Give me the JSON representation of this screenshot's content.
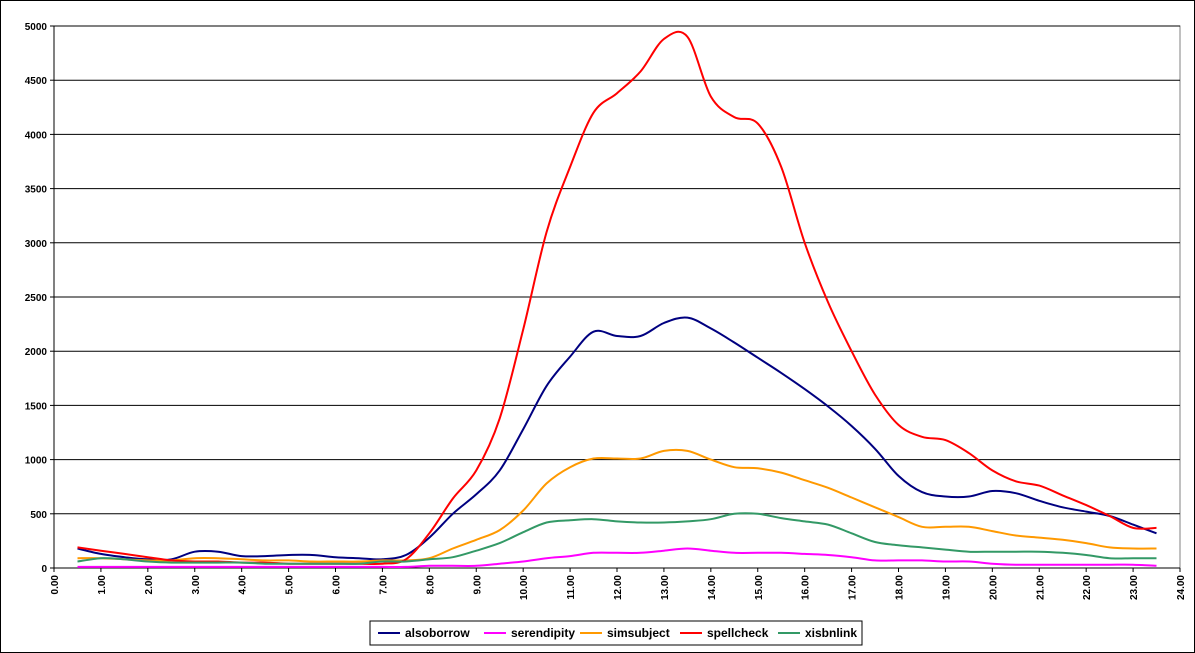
{
  "chart_data": {
    "type": "line",
    "title": "",
    "xlabel": "",
    "ylabel": "",
    "ylim": [
      0,
      5000
    ],
    "xlim": [
      0,
      24
    ],
    "y_ticks": [
      "0",
      "500",
      "1000",
      "1500",
      "2000",
      "2500",
      "3000",
      "3500",
      "4000",
      "4500",
      "5000"
    ],
    "x_ticks": [
      "0.00",
      "1.00",
      "2.00",
      "3.00",
      "4.00",
      "5.00",
      "6.00",
      "7.00",
      "8.00",
      "9.00",
      "10.00",
      "11.00",
      "12.00",
      "13.00",
      "14.00",
      "15.00",
      "16.00",
      "17.00",
      "18.00",
      "19.00",
      "20.00",
      "21.00",
      "22.00",
      "23.00",
      "24.00"
    ],
    "grid": "horizontal",
    "legend_position": "bottom",
    "x": [
      0.5,
      1.0,
      1.5,
      2.0,
      2.5,
      3.0,
      3.5,
      4.0,
      4.5,
      5.0,
      5.5,
      6.0,
      6.5,
      7.0,
      7.5,
      8.0,
      8.5,
      9.0,
      9.5,
      10.0,
      10.5,
      11.0,
      11.5,
      12.0,
      12.5,
      13.0,
      13.5,
      14.0,
      14.5,
      15.0,
      15.5,
      16.0,
      16.5,
      17.0,
      17.5,
      18.0,
      18.5,
      19.0,
      19.5,
      20.0,
      20.5,
      21.0,
      21.5,
      22.0,
      22.5,
      23.0,
      23.5
    ],
    "series": [
      {
        "name": "alsoborrow",
        "color": "#000080",
        "values": [
          180,
          130,
          100,
          80,
          80,
          150,
          150,
          110,
          110,
          120,
          120,
          100,
          90,
          80,
          120,
          280,
          500,
          680,
          900,
          1280,
          1680,
          1950,
          2180,
          2140,
          2140,
          2260,
          2310,
          2210,
          2080,
          1940,
          1800,
          1650,
          1490,
          1310,
          1100,
          850,
          700,
          660,
          660,
          710,
          690,
          620,
          560,
          520,
          480,
          400,
          320
        ]
      },
      {
        "name": "serendipity",
        "color": "#FF00FF",
        "values": [
          10,
          10,
          10,
          10,
          10,
          10,
          10,
          10,
          10,
          10,
          10,
          10,
          10,
          10,
          10,
          20,
          20,
          20,
          40,
          60,
          90,
          110,
          140,
          140,
          140,
          160,
          180,
          160,
          140,
          140,
          140,
          130,
          120,
          100,
          70,
          70,
          70,
          60,
          60,
          40,
          30,
          30,
          30,
          30,
          30,
          30,
          20
        ]
      },
      {
        "name": "simsubject",
        "color": "#FF9900",
        "values": [
          90,
          90,
          80,
          70,
          70,
          90,
          90,
          80,
          70,
          70,
          60,
          60,
          60,
          70,
          70,
          90,
          180,
          260,
          350,
          530,
          780,
          930,
          1010,
          1010,
          1010,
          1080,
          1080,
          1000,
          930,
          920,
          880,
          810,
          740,
          650,
          560,
          470,
          380,
          380,
          380,
          340,
          300,
          280,
          260,
          230,
          190,
          180,
          180
        ]
      },
      {
        "name": "spellcheck",
        "color": "#FF0000",
        "values": [
          190,
          160,
          130,
          100,
          70,
          60,
          60,
          50,
          50,
          40,
          40,
          40,
          40,
          40,
          80,
          320,
          640,
          900,
          1380,
          2200,
          3100,
          3700,
          4200,
          4380,
          4580,
          4880,
          4900,
          4350,
          4160,
          4100,
          3700,
          3000,
          2450,
          2000,
          1600,
          1320,
          1210,
          1180,
          1060,
          900,
          800,
          760,
          670,
          580,
          480,
          370,
          370
        ]
      },
      {
        "name": "xisbnlink",
        "color": "#339966",
        "values": [
          60,
          90,
          80,
          60,
          50,
          50,
          50,
          50,
          40,
          40,
          40,
          40,
          40,
          60,
          60,
          80,
          100,
          160,
          230,
          330,
          420,
          440,
          450,
          430,
          420,
          420,
          430,
          450,
          500,
          500,
          460,
          430,
          400,
          320,
          240,
          210,
          190,
          170,
          150,
          150,
          150,
          150,
          140,
          120,
          90,
          90,
          90
        ]
      }
    ]
  }
}
